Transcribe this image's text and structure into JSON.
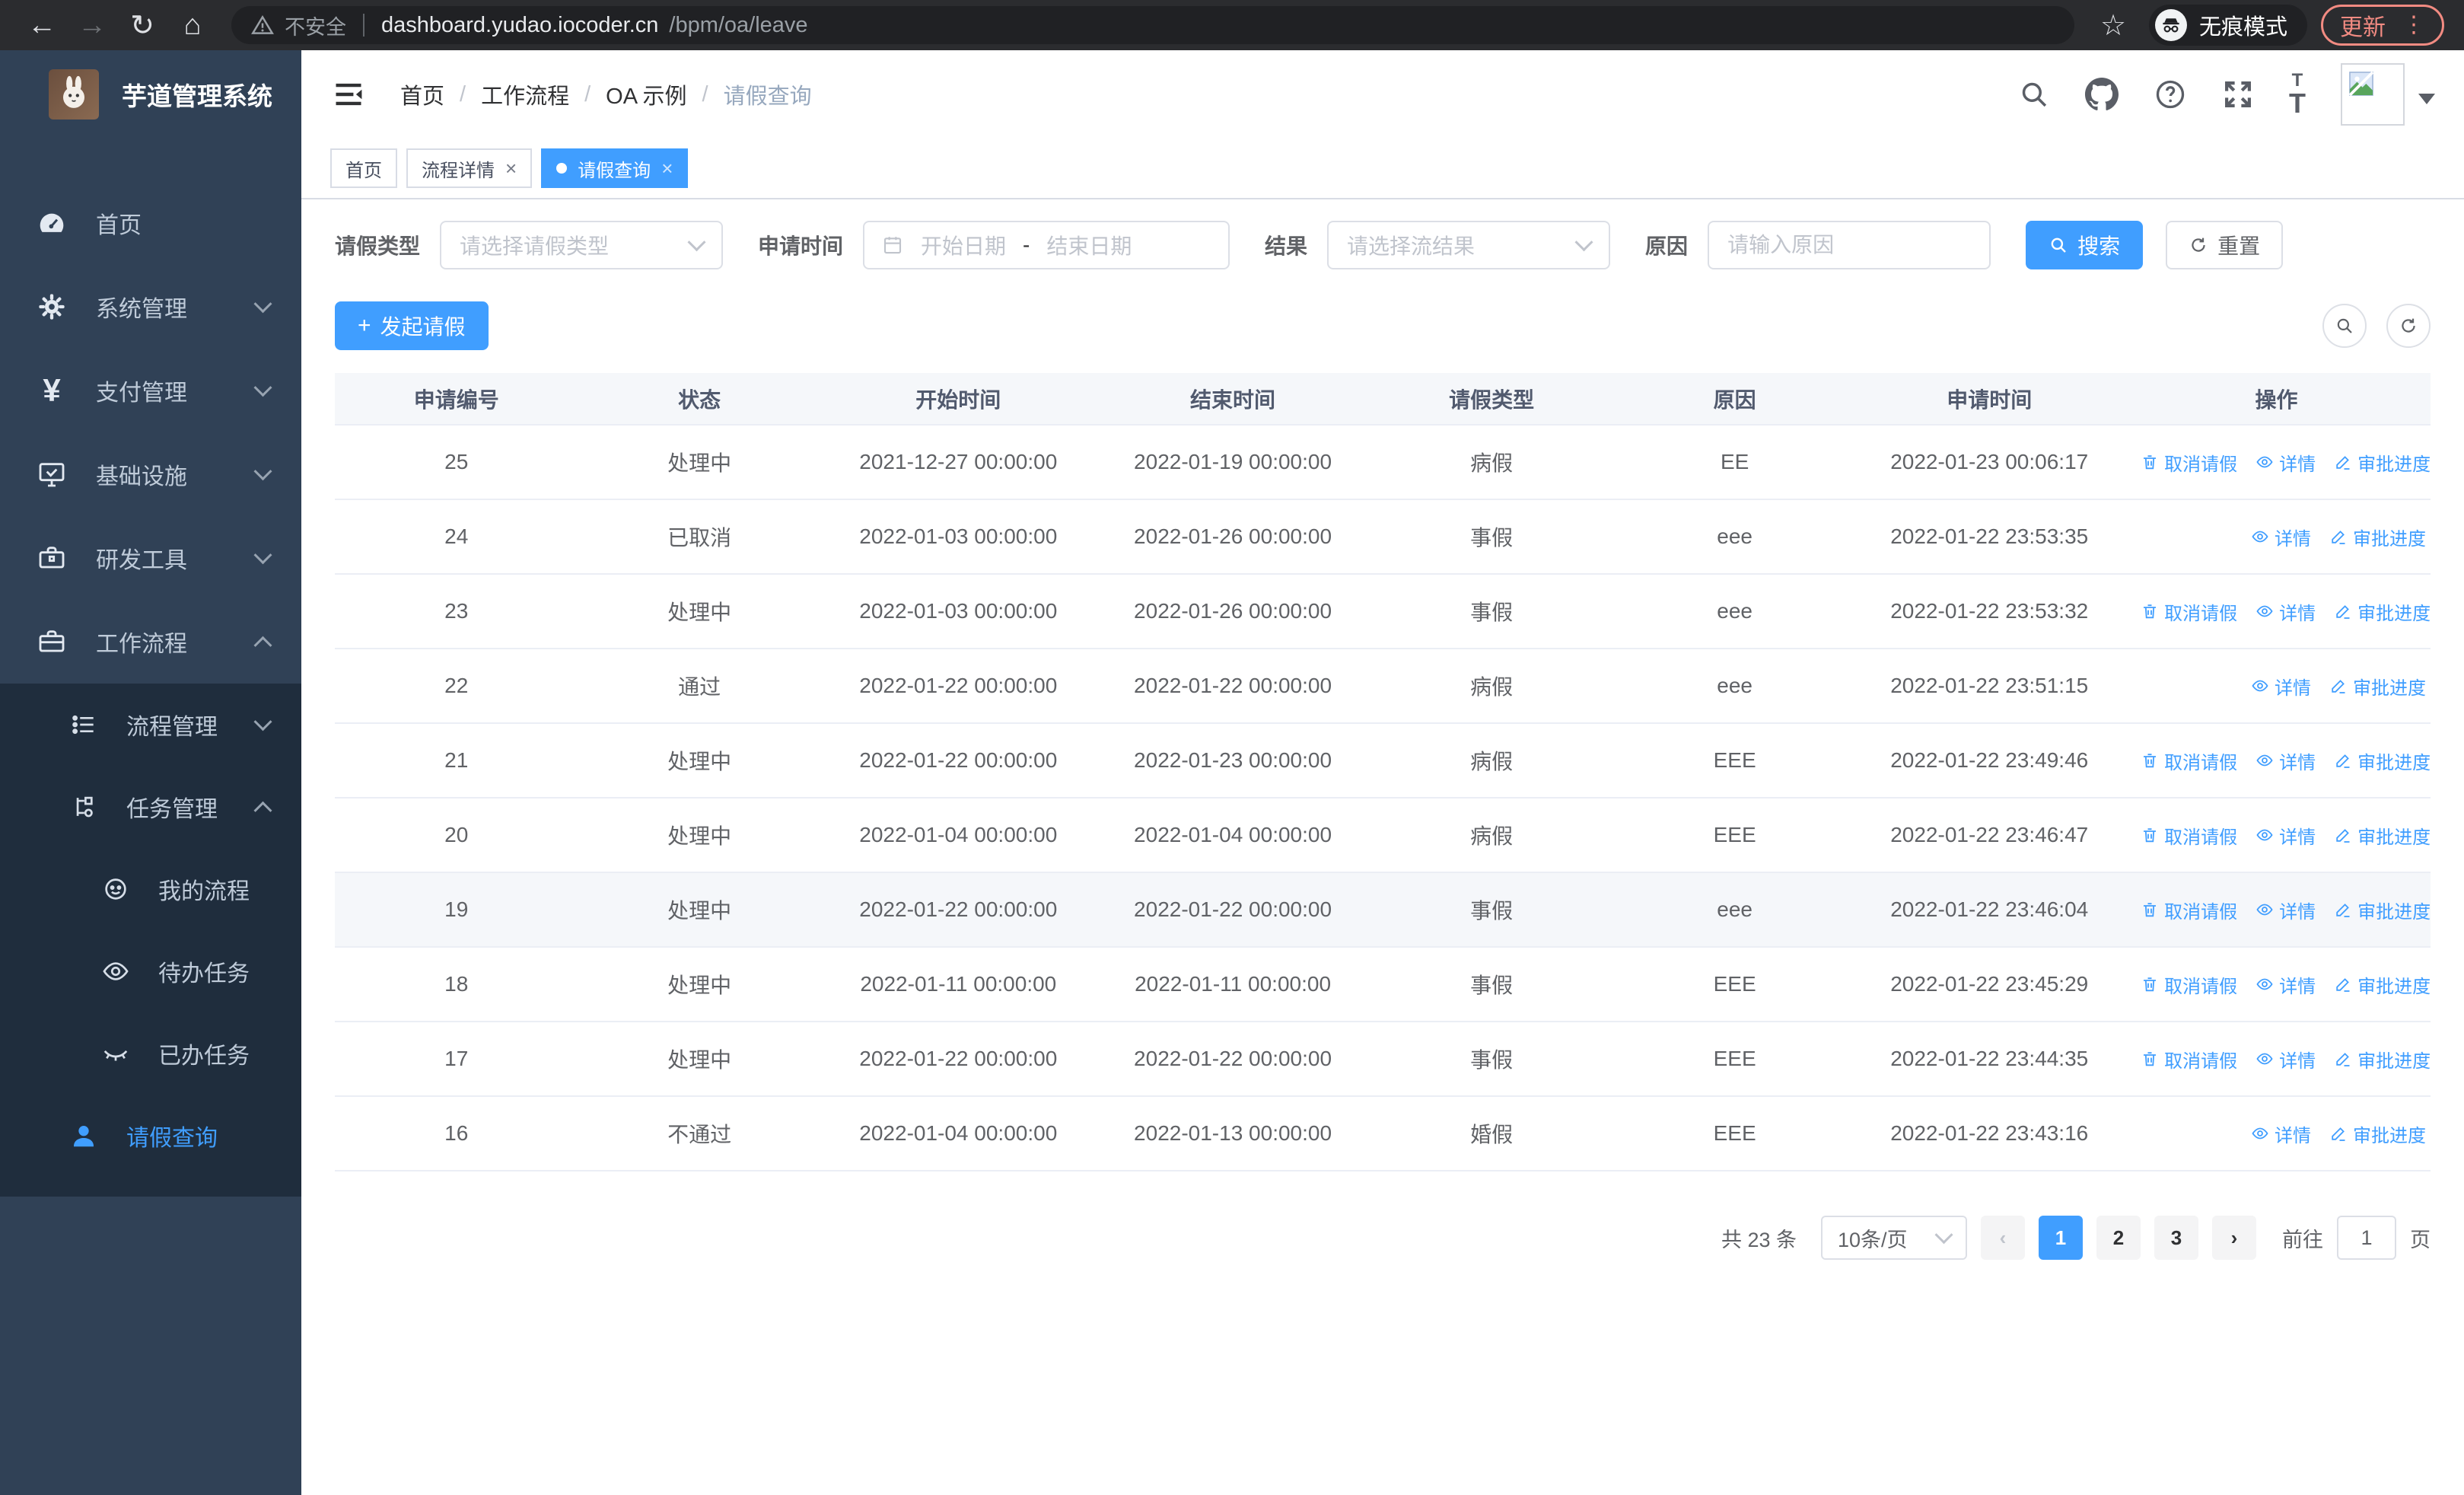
{
  "browser": {
    "security_label": "不安全",
    "url_domain": "dashboard.yudao.iocoder.cn",
    "url_path": "/bpm/oa/leave",
    "incognito_label": "无痕模式",
    "update_label": "更新"
  },
  "sidebar": {
    "title": "芋道管理系统",
    "items": [
      {
        "label": "首页"
      },
      {
        "label": "系统管理"
      },
      {
        "label": "支付管理"
      },
      {
        "label": "基础设施"
      },
      {
        "label": "研发工具"
      },
      {
        "label": "工作流程"
      }
    ],
    "submenu": [
      {
        "label": "流程管理"
      },
      {
        "label": "任务管理"
      },
      {
        "label": "我的流程"
      },
      {
        "label": "待办任务"
      },
      {
        "label": "已办任务"
      },
      {
        "label": "请假查询"
      }
    ]
  },
  "header": {
    "breadcrumb": [
      "首页",
      "工作流程",
      "OA 示例",
      "请假查询"
    ]
  },
  "tabs": [
    {
      "label": "首页"
    },
    {
      "label": "流程详情"
    },
    {
      "label": "请假查询"
    }
  ],
  "filters": {
    "leave_type_label": "请假类型",
    "leave_type_placeholder": "请选择请假类型",
    "apply_time_label": "申请时间",
    "start_date_placeholder": "开始日期",
    "range_separator": "-",
    "end_date_placeholder": "结束日期",
    "result_label": "结果",
    "result_placeholder": "请选择流结果",
    "reason_label": "原因",
    "reason_placeholder": "请输入原因",
    "search_label": "搜索",
    "reset_label": "重置"
  },
  "toolbar": {
    "create_label": "发起请假"
  },
  "table": {
    "columns": [
      "申请编号",
      "状态",
      "开始时间",
      "结束时间",
      "请假类型",
      "原因",
      "申请时间",
      "操作"
    ],
    "cell_names": [
      "cell-apply-id",
      "cell-status",
      "cell-start-time",
      "cell-end-time",
      "cell-leave-type",
      "cell-reason",
      "cell-apply-time"
    ],
    "rows": [
      {
        "id": "25",
        "status": "处理中",
        "start": "2021-12-27 00:00:00",
        "end": "2022-01-19 00:00:00",
        "type": "病假",
        "reason": "EE",
        "apply_time": "2022-01-23 00:06:17",
        "highlighted": false,
        "actions": [
          {
            "label": "取消请假",
            "icon": "trash",
            "name": "cancel-leave-link"
          },
          {
            "label": "详情",
            "icon": "eye",
            "name": "detail-link"
          },
          {
            "label": "审批进度",
            "icon": "edit",
            "name": "approval-progress-link"
          }
        ]
      },
      {
        "id": "24",
        "status": "已取消",
        "start": "2022-01-03 00:00:00",
        "end": "2022-01-26 00:00:00",
        "type": "事假",
        "reason": "eee",
        "apply_time": "2022-01-22 23:53:35",
        "highlighted": false,
        "actions": [
          {
            "label": "详情",
            "icon": "eye",
            "name": "detail-link"
          },
          {
            "label": "审批进度",
            "icon": "edit",
            "name": "approval-progress-link"
          }
        ]
      },
      {
        "id": "23",
        "status": "处理中",
        "start": "2022-01-03 00:00:00",
        "end": "2022-01-26 00:00:00",
        "type": "事假",
        "reason": "eee",
        "apply_time": "2022-01-22 23:53:32",
        "highlighted": false,
        "actions": [
          {
            "label": "取消请假",
            "icon": "trash",
            "name": "cancel-leave-link"
          },
          {
            "label": "详情",
            "icon": "eye",
            "name": "detail-link"
          },
          {
            "label": "审批进度",
            "icon": "edit",
            "name": "approval-progress-link"
          }
        ]
      },
      {
        "id": "22",
        "status": "通过",
        "start": "2022-01-22 00:00:00",
        "end": "2022-01-22 00:00:00",
        "type": "病假",
        "reason": "eee",
        "apply_time": "2022-01-22 23:51:15",
        "highlighted": false,
        "actions": [
          {
            "label": "详情",
            "icon": "eye",
            "name": "detail-link"
          },
          {
            "label": "审批进度",
            "icon": "edit",
            "name": "approval-progress-link"
          }
        ]
      },
      {
        "id": "21",
        "status": "处理中",
        "start": "2022-01-22 00:00:00",
        "end": "2022-01-23 00:00:00",
        "type": "病假",
        "reason": "EEE",
        "apply_time": "2022-01-22 23:49:46",
        "highlighted": false,
        "actions": [
          {
            "label": "取消请假",
            "icon": "trash",
            "name": "cancel-leave-link"
          },
          {
            "label": "详情",
            "icon": "eye",
            "name": "detail-link"
          },
          {
            "label": "审批进度",
            "icon": "edit",
            "name": "approval-progress-link"
          }
        ]
      },
      {
        "id": "20",
        "status": "处理中",
        "start": "2022-01-04 00:00:00",
        "end": "2022-01-04 00:00:00",
        "type": "病假",
        "reason": "EEE",
        "apply_time": "2022-01-22 23:46:47",
        "highlighted": false,
        "actions": [
          {
            "label": "取消请假",
            "icon": "trash",
            "name": "cancel-leave-link"
          },
          {
            "label": "详情",
            "icon": "eye",
            "name": "detail-link"
          },
          {
            "label": "审批进度",
            "icon": "edit",
            "name": "approval-progress-link"
          }
        ]
      },
      {
        "id": "19",
        "status": "处理中",
        "start": "2022-01-22 00:00:00",
        "end": "2022-01-22 00:00:00",
        "type": "事假",
        "reason": "eee",
        "apply_time": "2022-01-22 23:46:04",
        "highlighted": true,
        "actions": [
          {
            "label": "取消请假",
            "icon": "trash",
            "name": "cancel-leave-link"
          },
          {
            "label": "详情",
            "icon": "eye",
            "name": "detail-link"
          },
          {
            "label": "审批进度",
            "icon": "edit",
            "name": "approval-progress-link"
          }
        ]
      },
      {
        "id": "18",
        "status": "处理中",
        "start": "2022-01-11 00:00:00",
        "end": "2022-01-11 00:00:00",
        "type": "事假",
        "reason": "EEE",
        "apply_time": "2022-01-22 23:45:29",
        "highlighted": false,
        "actions": [
          {
            "label": "取消请假",
            "icon": "trash",
            "name": "cancel-leave-link"
          },
          {
            "label": "详情",
            "icon": "eye",
            "name": "detail-link"
          },
          {
            "label": "审批进度",
            "icon": "edit",
            "name": "approval-progress-link"
          }
        ]
      },
      {
        "id": "17",
        "status": "处理中",
        "start": "2022-01-22 00:00:00",
        "end": "2022-01-22 00:00:00",
        "type": "事假",
        "reason": "EEE",
        "apply_time": "2022-01-22 23:44:35",
        "highlighted": false,
        "actions": [
          {
            "label": "取消请假",
            "icon": "trash",
            "name": "cancel-leave-link"
          },
          {
            "label": "详情",
            "icon": "eye",
            "name": "detail-link"
          },
          {
            "label": "审批进度",
            "icon": "edit",
            "name": "approval-progress-link"
          }
        ]
      },
      {
        "id": "16",
        "status": "不通过",
        "start": "2022-01-04 00:00:00",
        "end": "2022-01-13 00:00:00",
        "type": "婚假",
        "reason": "EEE",
        "apply_time": "2022-01-22 23:43:16",
        "highlighted": false,
        "actions": [
          {
            "label": "详情",
            "icon": "eye",
            "name": "detail-link"
          },
          {
            "label": "审批进度",
            "icon": "edit",
            "name": "approval-progress-link"
          }
        ]
      }
    ]
  },
  "pagination": {
    "total": "共 23 条",
    "page_size": "10条/页",
    "pages": [
      "1",
      "2",
      "3"
    ],
    "goto_label": "前往",
    "goto_value": "1",
    "page_suffix": "页"
  },
  "colors": {
    "accent": "#409EFF",
    "sidebar": "#304156",
    "submenu": "#1f2d3d",
    "update": "#f28b82"
  }
}
